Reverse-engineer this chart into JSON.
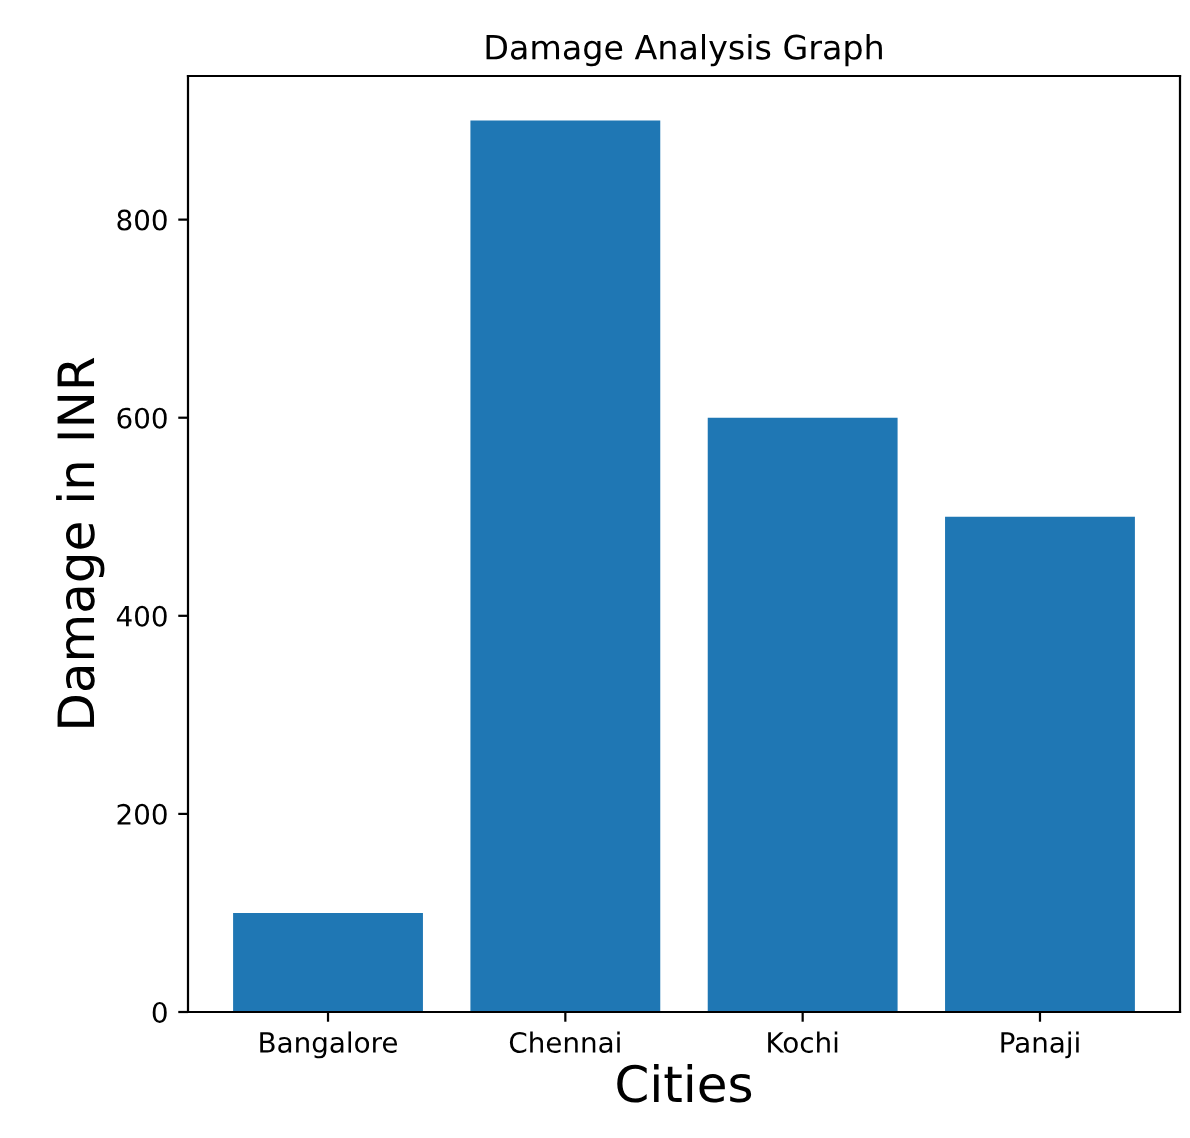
{
  "chart_data": {
    "type": "bar",
    "title": "Damage Analysis Graph",
    "xlabel": "Cities",
    "ylabel": "Damage in INR",
    "categories": [
      "Bangalore",
      "Chennai",
      "Kochi",
      "Panaji"
    ],
    "values": [
      100,
      900,
      600,
      500
    ],
    "color": "#1f77b4",
    "ylim": [
      0,
      945
    ],
    "yticks": [
      0,
      200,
      400,
      600,
      800
    ],
    "grid": false,
    "legend": false
  }
}
